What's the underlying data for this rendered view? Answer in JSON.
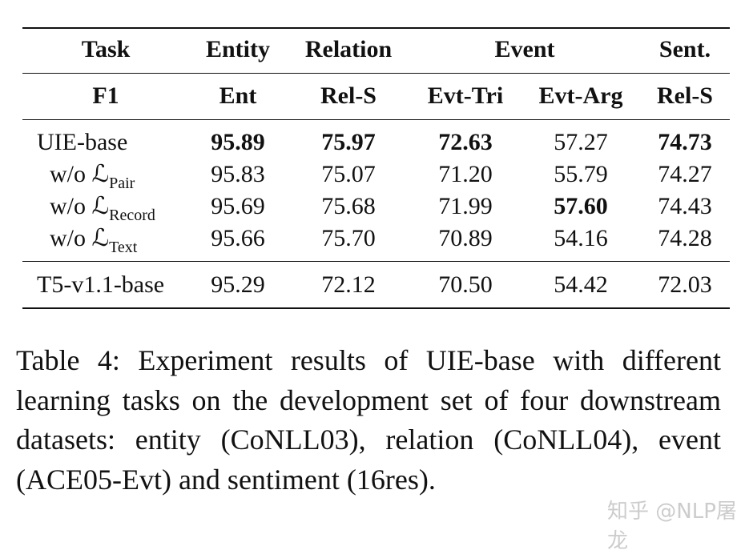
{
  "header": {
    "task": "Task",
    "entity": "Entity",
    "relation": "Relation",
    "event": "Event",
    "sent": "Sent."
  },
  "subheader": {
    "f1": "F1",
    "ent": "Ent",
    "rel": "Rel-S",
    "evt_tri": "Evt-Tri",
    "evt_arg": "Evt-Arg",
    "sent": "Rel-S"
  },
  "rows": [
    {
      "name": "UIE-base",
      "values": [
        "95.89",
        "75.97",
        "72.63",
        "57.27",
        "74.73"
      ],
      "bold": [
        true,
        true,
        true,
        false,
        true
      ]
    },
    {
      "name": "w/o ℒ",
      "sub": "Pair",
      "values": [
        "95.83",
        "75.07",
        "71.20",
        "55.79",
        "74.27"
      ],
      "bold": [
        false,
        false,
        false,
        false,
        false
      ]
    },
    {
      "name": "w/o ℒ",
      "sub": "Record",
      "values": [
        "95.69",
        "75.68",
        "71.99",
        "57.60",
        "74.43"
      ],
      "bold": [
        false,
        false,
        false,
        true,
        false
      ]
    },
    {
      "name": "w/o ℒ",
      "sub": "Text",
      "values": [
        "95.66",
        "75.70",
        "70.89",
        "54.16",
        "74.28"
      ],
      "bold": [
        false,
        false,
        false,
        false,
        false
      ]
    },
    {
      "name": "T5-v1.1-base",
      "values": [
        "95.29",
        "72.12",
        "70.50",
        "54.42",
        "72.03"
      ],
      "bold": [
        false,
        false,
        false,
        false,
        false
      ]
    }
  ],
  "caption": "Table 4:  Experiment results of UIE-base with different learning tasks on the development set of four downstream datasets:  entity (CoNLL03), relation (CoNLL04), event (ACE05-Evt) and sentiment (16res).",
  "watermark": "知乎 @NLP屠龙"
}
